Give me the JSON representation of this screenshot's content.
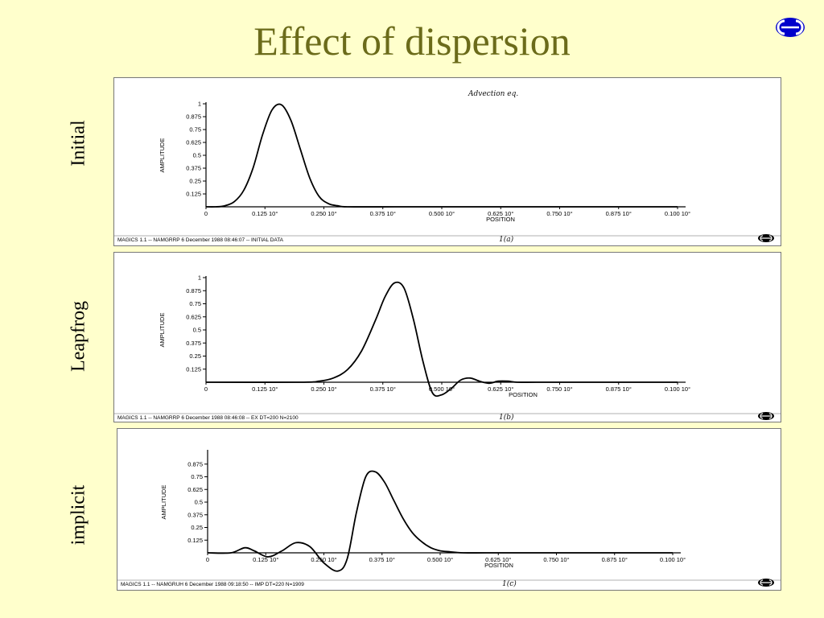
{
  "slide": {
    "title": "Effect of dispersion",
    "accent_color": "#6b6b1a",
    "background_color": "#ffffcc",
    "logo_icon": "ecmwf-logo"
  },
  "chart_data": [
    {
      "type": "line",
      "panel_label": "Initial",
      "annotation": "Advection eq.",
      "ylabel": "AMPLITUDE",
      "xlabel": "POSITION",
      "xlim": [
        0,
        1
      ],
      "ylim": [
        0,
        1
      ],
      "xticks": [
        "0",
        "0.125 10°",
        "0.250 10°",
        "0.375 10°",
        "0.500 10°",
        "0.625 10°",
        "0.750 10°",
        "0.875 10°",
        "0.100 10°"
      ],
      "yticks": [
        "1",
        "0.875",
        "0.75",
        "0.625",
        "0.5",
        "0.375",
        "0.25",
        "0.125"
      ],
      "footer": "MAGICS 1.1 -- NAMGRRP 6 December 1988 08:46:07 -- INITIAL DATA",
      "figure_label": "1(a)",
      "series": [
        {
          "x": [
            0,
            0.02,
            0.04,
            0.06,
            0.08,
            0.1,
            0.12,
            0.14,
            0.16,
            0.18,
            0.2,
            0.22,
            0.24,
            0.26,
            0.28,
            0.3,
            0.4,
            0.5,
            0.6,
            0.7,
            0.8,
            0.9,
            1
          ],
          "y": [
            0,
            0,
            0.01,
            0.05,
            0.16,
            0.38,
            0.7,
            0.94,
            0.99,
            0.84,
            0.56,
            0.28,
            0.1,
            0.03,
            0.01,
            0,
            0,
            0,
            0,
            0,
            0,
            0,
            0
          ]
        }
      ]
    },
    {
      "type": "line",
      "panel_label": "Leapfrog",
      "ylabel": "AMPLITUDE",
      "xlabel": "POSITION",
      "xlim": [
        0,
        1
      ],
      "ylim": [
        0,
        1
      ],
      "xticks": [
        "0",
        "0.125 10°",
        "0.250 10°",
        "0.375 10°",
        "0.500 10°",
        "0.625 10°",
        "0.750 10°",
        "0.875 10°",
        "0.100 10°"
      ],
      "yticks": [
        "1",
        "0.875",
        "0.75",
        "0.625",
        "0.5",
        "0.375",
        "0.25",
        "0.125"
      ],
      "footer": "MAGICS 1.1 -- NAMGRRP 6 December 1988 08:46:08 -- EX DT=200 N=2100",
      "figure_label": "1(b)",
      "series": [
        {
          "x": [
            0,
            0.2,
            0.24,
            0.27,
            0.3,
            0.33,
            0.36,
            0.38,
            0.4,
            0.42,
            0.44,
            0.46,
            0.48,
            0.5,
            0.52,
            0.54,
            0.56,
            0.58,
            0.6,
            0.62,
            0.64,
            0.66,
            0.7,
            0.8,
            1
          ],
          "y": [
            0,
            0,
            0.01,
            0.04,
            0.12,
            0.3,
            0.6,
            0.82,
            0.95,
            0.9,
            0.6,
            0.2,
            -0.1,
            -0.12,
            -0.06,
            0.02,
            0.04,
            0.01,
            -0.01,
            0.01,
            0.01,
            0,
            0,
            0,
            0
          ]
        }
      ]
    },
    {
      "type": "line",
      "panel_label": "implicit",
      "ylabel": "AMPLITUDE",
      "xlabel": "POSITION",
      "xlim": [
        0,
        1
      ],
      "ylim": [
        0,
        1
      ],
      "xticks": [
        "0",
        "0.125 10°",
        "0.250 10°",
        "0.375 10°",
        "0.500 10°",
        "0.625 10°",
        "0.750 10°",
        "0.875 10°",
        "0.100 10°"
      ],
      "yticks": [
        "0.875",
        "0.75",
        "0.625",
        "0.5",
        "0.375",
        "0.25",
        "0.125"
      ],
      "footer": "MAGICS 1.1 -- NAMGRUH 6 December 1988 09:18:50 -- IMP DT=220 N=1909",
      "figure_label": "1(c)",
      "series": [
        {
          "x": [
            0,
            0.05,
            0.08,
            0.1,
            0.13,
            0.16,
            0.19,
            0.22,
            0.25,
            0.28,
            0.3,
            0.32,
            0.34,
            0.36,
            0.38,
            0.4,
            0.42,
            0.44,
            0.46,
            0.48,
            0.5,
            0.52,
            0.55,
            0.6,
            0.7,
            1
          ],
          "y": [
            0,
            0,
            0.05,
            0.02,
            -0.04,
            0.02,
            0.1,
            0.06,
            -0.1,
            -0.18,
            -0.06,
            0.4,
            0.75,
            0.8,
            0.7,
            0.52,
            0.34,
            0.2,
            0.11,
            0.05,
            0.02,
            0.01,
            0,
            0,
            0,
            0
          ]
        }
      ]
    }
  ]
}
